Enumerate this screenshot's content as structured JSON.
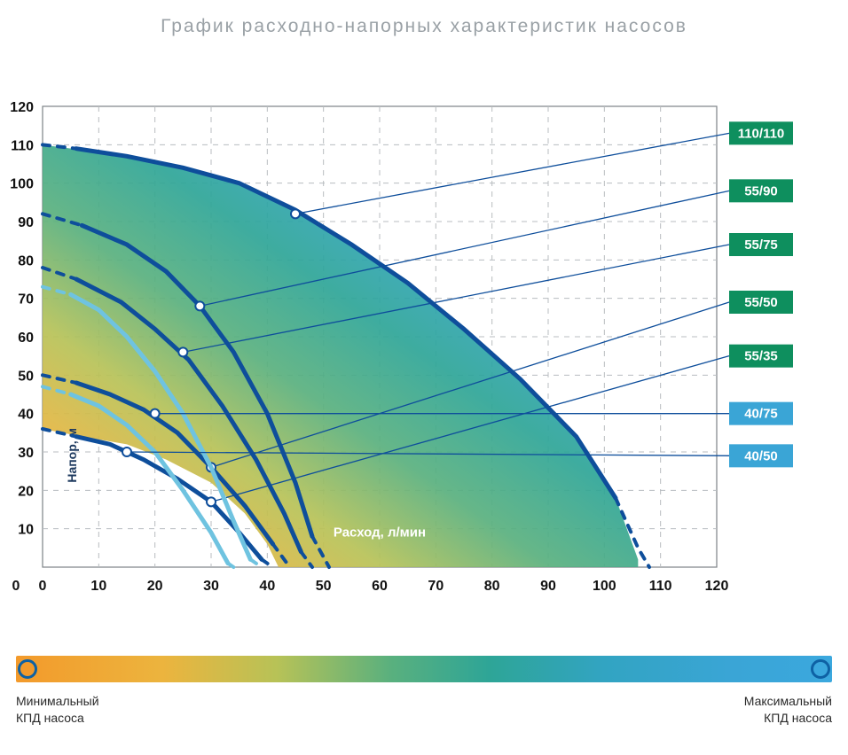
{
  "title": "График расходно-напорных характеристик насосов",
  "chart": {
    "xlim": [
      0,
      120
    ],
    "ylim": [
      0,
      120
    ],
    "xticks": [
      0,
      10,
      20,
      30,
      40,
      50,
      60,
      70,
      80,
      90,
      100,
      110,
      120
    ],
    "yticks": [
      0,
      10,
      20,
      30,
      40,
      50,
      60,
      70,
      80,
      90,
      100,
      110,
      120
    ],
    "xlabel": "Расход, л/мин",
    "ylabel": "Напор, м",
    "grid_color": "#b8bcc0",
    "background": "#ffffff",
    "envelope_gradient": [
      "#f39a2b",
      "#ecb43e",
      "#b7c257",
      "#59b07e",
      "#2ea597",
      "#32a4c2",
      "#3aa5d6",
      "#3ba8de"
    ],
    "envelope_top": [
      [
        0,
        110
      ],
      [
        5,
        109
      ],
      [
        15,
        107
      ],
      [
        25,
        104
      ],
      [
        35,
        100
      ],
      [
        45,
        93
      ],
      [
        55,
        84
      ],
      [
        65,
        74
      ],
      [
        75,
        62
      ],
      [
        85,
        49
      ],
      [
        95,
        34
      ],
      [
        102,
        18
      ],
      [
        106,
        2
      ]
    ],
    "envelope_bottom": [
      [
        0,
        36
      ],
      [
        7,
        34
      ],
      [
        15,
        32
      ],
      [
        22,
        28
      ],
      [
        30,
        22
      ],
      [
        36,
        14
      ],
      [
        40,
        6
      ],
      [
        42,
        0
      ]
    ],
    "curves": [
      {
        "id": "110_110",
        "label": "110/110",
        "tag_color": "#0e8f5e",
        "color": "#0e4e9b",
        "width": 5,
        "dash_pre": [
          [
            0,
            110
          ],
          [
            6,
            109
          ]
        ],
        "points": [
          [
            6,
            109
          ],
          [
            15,
            107
          ],
          [
            25,
            104
          ],
          [
            35,
            100
          ],
          [
            45,
            93
          ],
          [
            55,
            84
          ],
          [
            65,
            74
          ],
          [
            75,
            62
          ],
          [
            85,
            49
          ],
          [
            95,
            34
          ],
          [
            102,
            18
          ]
        ],
        "dash_post": [
          [
            102,
            18
          ],
          [
            106,
            5
          ],
          [
            108,
            0
          ]
        ],
        "marker": [
          45,
          92
        ],
        "tag_y": 113
      },
      {
        "id": "55_90",
        "label": "55/90",
        "tag_color": "#0e8f5e",
        "color": "#0e4e9b",
        "width": 5,
        "dash_pre": [
          [
            0,
            92
          ],
          [
            7,
            89
          ]
        ],
        "points": [
          [
            7,
            89
          ],
          [
            15,
            84
          ],
          [
            22,
            77
          ],
          [
            28,
            68
          ],
          [
            34,
            56
          ],
          [
            40,
            40
          ],
          [
            45,
            22
          ],
          [
            48,
            8
          ]
        ],
        "dash_post": [
          [
            48,
            8
          ],
          [
            51,
            0
          ]
        ],
        "marker": [
          28,
          68
        ],
        "tag_y": 98
      },
      {
        "id": "55_75",
        "label": "55/75",
        "tag_color": "#0e8f5e",
        "color": "#0e4e9b",
        "width": 5,
        "dash_pre": [
          [
            0,
            78
          ],
          [
            6,
            75
          ]
        ],
        "points": [
          [
            6,
            75
          ],
          [
            14,
            69
          ],
          [
            20,
            62
          ],
          [
            26,
            54
          ],
          [
            32,
            42
          ],
          [
            38,
            28
          ],
          [
            43,
            14
          ],
          [
            46,
            4
          ]
        ],
        "dash_post": [
          [
            46,
            4
          ],
          [
            48,
            0
          ]
        ],
        "marker": [
          25,
          56
        ],
        "tag_y": 84
      },
      {
        "id": "55_50",
        "label": "55/50",
        "tag_color": "#0e8f5e",
        "color": "#0e4e9b",
        "width": 5,
        "dash_pre": [
          [
            0,
            50
          ],
          [
            6,
            48
          ]
        ],
        "points": [
          [
            6,
            48
          ],
          [
            12,
            45
          ],
          [
            18,
            41
          ],
          [
            24,
            35
          ],
          [
            30,
            26
          ],
          [
            36,
            16
          ],
          [
            41,
            6
          ]
        ],
        "dash_post": [
          [
            41,
            6
          ],
          [
            44,
            0
          ]
        ],
        "marker": [
          30,
          26
        ],
        "tag_y": 69
      },
      {
        "id": "55_35",
        "label": "55/35",
        "tag_color": "#0e8f5e",
        "color": "#0e4e9b",
        "width": 5,
        "dash_pre": [
          [
            0,
            36
          ],
          [
            6,
            34
          ]
        ],
        "points": [
          [
            6,
            34
          ],
          [
            12,
            32
          ],
          [
            18,
            28
          ],
          [
            24,
            23
          ],
          [
            30,
            17
          ],
          [
            35,
            9
          ],
          [
            39,
            2
          ]
        ],
        "dash_post": [
          [
            39,
            2
          ],
          [
            41,
            0
          ]
        ],
        "marker": [
          30,
          17
        ],
        "tag_y": 55
      },
      {
        "id": "40_75",
        "label": "40/75",
        "tag_color": "#3aa5d6",
        "color": "#6fc3e0",
        "width": 5,
        "dash_pre": [
          [
            0,
            73
          ],
          [
            5,
            71
          ]
        ],
        "points": [
          [
            5,
            71
          ],
          [
            10,
            67
          ],
          [
            15,
            60
          ],
          [
            20,
            51
          ],
          [
            25,
            40
          ],
          [
            30,
            26
          ],
          [
            34,
            12
          ],
          [
            37,
            2
          ]
        ],
        "dash_post": [
          [
            37,
            2
          ],
          [
            39,
            0
          ]
        ],
        "marker": [
          20,
          40
        ],
        "tag_y": 40
      },
      {
        "id": "40_50",
        "label": "40/50",
        "tag_color": "#3aa5d6",
        "color": "#6fc3e0",
        "width": 5,
        "dash_pre": [
          [
            0,
            47
          ],
          [
            5,
            45
          ]
        ],
        "points": [
          [
            5,
            45
          ],
          [
            10,
            42
          ],
          [
            15,
            37
          ],
          [
            20,
            30
          ],
          [
            25,
            20
          ],
          [
            30,
            9
          ],
          [
            33,
            1
          ]
        ],
        "dash_post": [
          [
            33,
            1
          ],
          [
            34,
            0
          ]
        ],
        "marker": [
          15,
          30
        ],
        "tag_y": 29
      }
    ]
  },
  "legend": {
    "gradient": [
      "#f39a2b",
      "#ecb43e",
      "#b7c257",
      "#59b07e",
      "#2ea597",
      "#32a4c2",
      "#3aa5d6",
      "#3ba8de"
    ],
    "dot_border": "#0e61a4",
    "min_label_line1": "Минимальный",
    "min_label_line2": "КПД насоса",
    "max_label_line1": "Максимальный",
    "max_label_line2": "КПД насоса"
  }
}
